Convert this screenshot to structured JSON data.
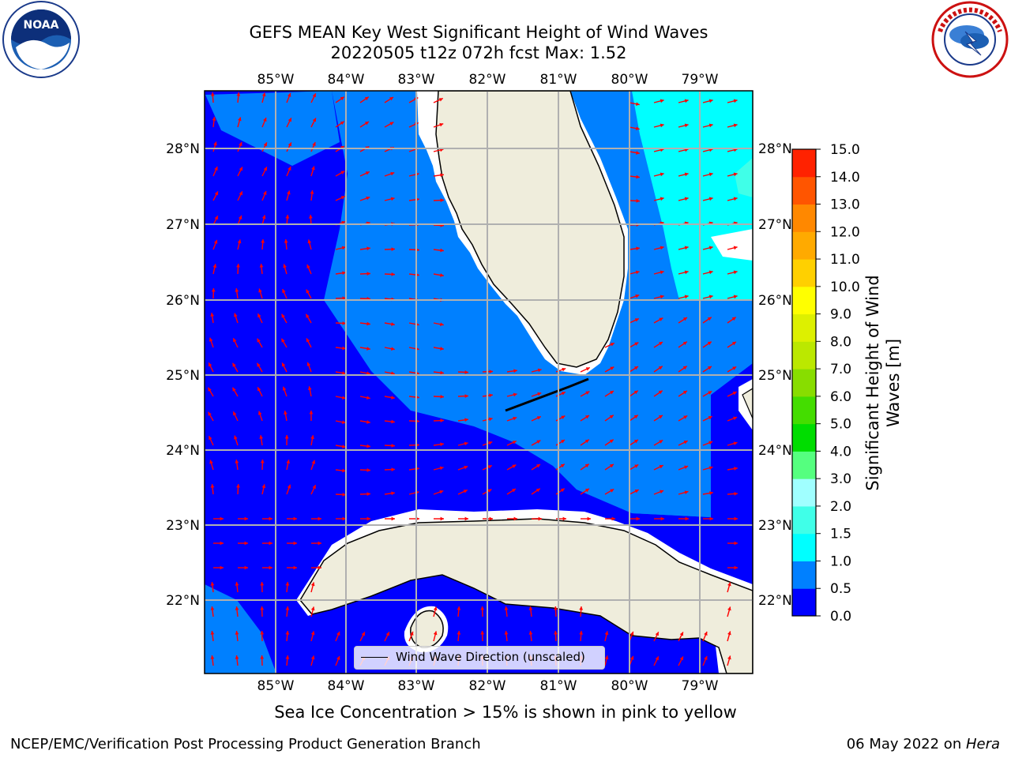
{
  "title": {
    "line1": "GEFS MEAN Key West Significant Height of Wind Waves",
    "line2": "20220505 t12z 072h fcst   Max: 1.52"
  },
  "logos": {
    "left": {
      "name": "NOAA",
      "ring_text": "NATIONAL OCEANIC AND ATMOSPHERIC ADMINISTRATION · U.S. DEPARTMENT OF COMMERCE"
    },
    "right": {
      "name": "NATIONAL WEATHER SERVICE"
    }
  },
  "map": {
    "lon_labels": [
      "85°W",
      "84°W",
      "83°W",
      "82°W",
      "81°W",
      "80°W",
      "79°W"
    ],
    "lat_labels": [
      "22°N",
      "23°N",
      "24°N",
      "25°N",
      "26°N",
      "27°N",
      "28°N"
    ],
    "legend_label": "Wind Wave Direction (unscaled)",
    "arrow_color": "#ff0000",
    "land_color": "#efeddc",
    "grid_color": "#b0b0b0"
  },
  "colorbar": {
    "label": "Significant Height of Wind Waves [m]",
    "ticks": [
      "0.0",
      "0.5",
      "1.0",
      "1.5",
      "2.0",
      "3.0",
      "4.0",
      "5.0",
      "6.0",
      "7.0",
      "8.0",
      "9.0",
      "10.0",
      "11.0",
      "12.0",
      "13.0",
      "14.0",
      "15.0"
    ],
    "colors": [
      "#0000ff",
      "#0080ff",
      "#00ffff",
      "#40ffe8",
      "#a0ffff",
      "#55ff7f",
      "#00dd00",
      "#44dd00",
      "#88dd00",
      "#bbe800",
      "#ddf000",
      "#ffff00",
      "#ffd000",
      "#ffaa00",
      "#ff8800",
      "#ff5500",
      "#ff2200"
    ]
  },
  "note": "Sea Ice Concentration > 15% is shown in pink to yellow",
  "footer": {
    "left": "NCEP/EMC/Verification Post Processing Product Generation Branch",
    "date": "06 May 2022 on ",
    "host": "Hera"
  }
}
